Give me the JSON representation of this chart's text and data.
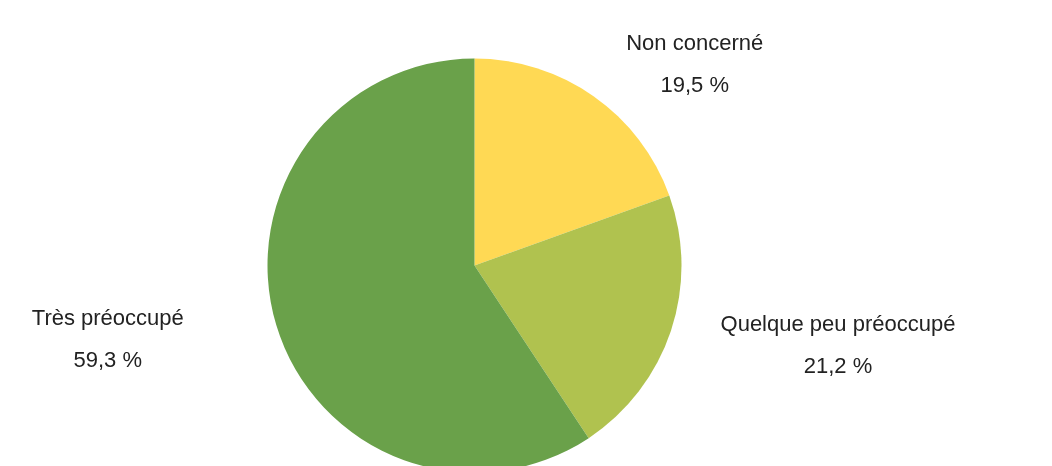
{
  "chart_data": {
    "type": "pie",
    "categories": [
      "Non concerné",
      "Quelque peu préoccupé",
      "Très préoccupé"
    ],
    "values": [
      19.5,
      21.2,
      59.3
    ],
    "colors": [
      "#ffd954",
      "#b0c24f",
      "#6aa14a"
    ],
    "value_labels": [
      "19,5 %",
      "21,2 %",
      "59,3 %"
    ]
  }
}
